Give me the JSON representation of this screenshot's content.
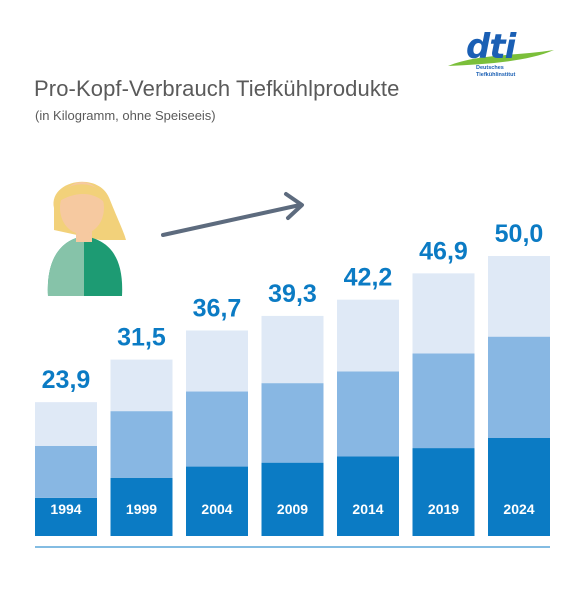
{
  "title": "Pro-Kopf-Verbrauch Tiefkühlprodukte",
  "subtitle": "(in Kilogramm, ohne Speiseeis)",
  "logo": {
    "mark": "dti",
    "line1": "Deutsches",
    "line2": "Tiefkühlinstitut"
  },
  "icons": [
    "person-avatar-icon",
    "trend-arrow-icon"
  ],
  "colors": {
    "light": "#dfe9f6",
    "medium": "#88b7e3",
    "dark": "#0b7bc4",
    "value_text": "#0b7bc4",
    "title_text": "#5a5a5a",
    "baseline": "#5aa6d9"
  },
  "chart_data": {
    "type": "bar",
    "stacked": true,
    "categories": [
      "1994",
      "1999",
      "2004",
      "2009",
      "2014",
      "2019",
      "2024"
    ],
    "values": [
      23.9,
      31.5,
      36.7,
      39.3,
      42.2,
      46.9,
      50.0
    ],
    "value_labels": [
      "23,9",
      "31,5",
      "36,7",
      "39,3",
      "42,2",
      "46,9",
      "50,0"
    ],
    "series": [
      {
        "values": [
          6.8,
          10.4,
          12.4,
          13.1,
          14.2,
          15.7,
          17.5
        ]
      },
      {
        "values": [
          9.3,
          11.9,
          13.4,
          14.2,
          15.2,
          16.9,
          18.1
        ]
      },
      {
        "values": [
          7.8,
          9.2,
          10.9,
          12.0,
          12.8,
          14.3,
          14.4
        ]
      }
    ],
    "xlabel": "",
    "ylabel": "",
    "ylim": [
      0,
      50
    ],
    "grid": false,
    "legend": "none"
  }
}
